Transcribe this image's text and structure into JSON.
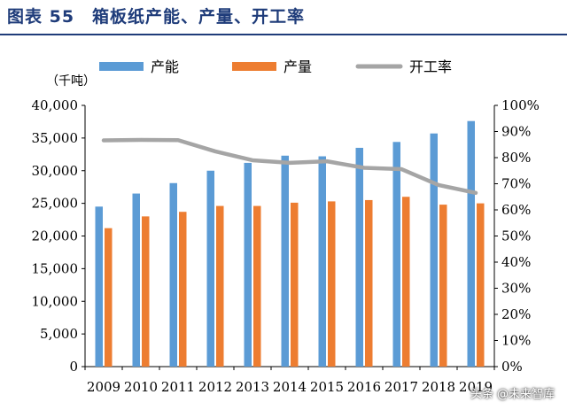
{
  "header": {
    "title": "图表 55　箱板纸产能、产量、开工率"
  },
  "watermark": "头条 @未来智库",
  "colors": {
    "capacity": "#5b9bd5",
    "output": "#ed7d31",
    "utilization": "#a5a5a5",
    "title": "#1f3c7a"
  },
  "chart_data": {
    "type": "bar",
    "title": "箱板纸产能、产量、开工率",
    "ylabel": "（千吨）",
    "categories": [
      "2009",
      "2010",
      "2011",
      "2012",
      "2013",
      "2014",
      "2015",
      "2016",
      "2017",
      "2018",
      "2019"
    ],
    "series": [
      {
        "name": "产能",
        "type": "bar",
        "axis": "left",
        "values": [
          24500,
          26500,
          28100,
          30000,
          31200,
          32300,
          32200,
          33500,
          34400,
          35700,
          37600
        ]
      },
      {
        "name": "产量",
        "type": "bar",
        "axis": "left",
        "values": [
          21200,
          23000,
          23700,
          24600,
          24600,
          25100,
          25300,
          25500,
          26000,
          24800,
          25000
        ]
      },
      {
        "name": "开工率",
        "type": "line",
        "axis": "right",
        "values": [
          86.6,
          86.8,
          86.7,
          82.4,
          79.0,
          78.0,
          78.6,
          76.1,
          75.6,
          69.5,
          66.5
        ]
      }
    ],
    "ylim": [
      0,
      40000
    ],
    "y2lim": [
      0,
      100
    ],
    "yticks": [
      "0",
      "5,000",
      "10,000",
      "15,000",
      "20,000",
      "25,000",
      "30,000",
      "35,000",
      "40,000"
    ],
    "y2ticks": [
      "0%",
      "10%",
      "20%",
      "30%",
      "40%",
      "50%",
      "60%",
      "70%",
      "80%",
      "90%",
      "100%"
    ],
    "legend": "top"
  }
}
